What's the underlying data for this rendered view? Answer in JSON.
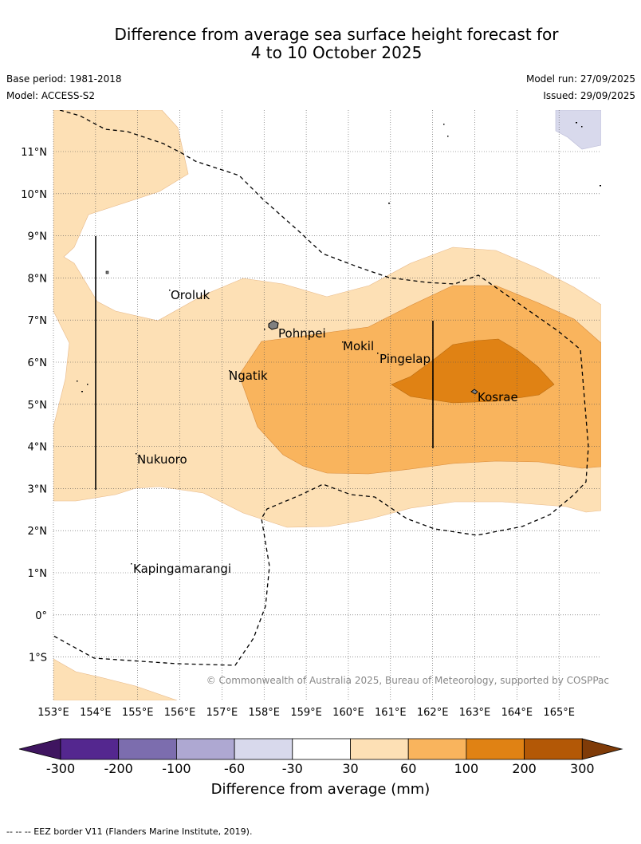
{
  "title": {
    "line1": "Difference from average sea surface height forecast for",
    "line2": "4 to 10 October 2025"
  },
  "meta": {
    "base_period": "Base period: 1981-2018",
    "model": "Model: ACCESS-S2",
    "model_run": "Model run: 27/09/2025",
    "issued": "Issued: 29/09/2025"
  },
  "axes": {
    "lat_labels": [
      "11°N",
      "10°N",
      "9°N",
      "8°N",
      "7°N",
      "6°N",
      "5°N",
      "4°N",
      "3°N",
      "2°N",
      "1°N",
      "0°",
      "1°S"
    ],
    "lon_labels": [
      "153°E",
      "154°E",
      "155°E",
      "156°E",
      "157°E",
      "158°E",
      "159°E",
      "160°E",
      "161°E",
      "162°E",
      "163°E",
      "164°E",
      "165°E"
    ]
  },
  "places": [
    {
      "name": "Oroluk"
    },
    {
      "name": "Pohnpei"
    },
    {
      "name": "Mokil"
    },
    {
      "name": "Pingelap"
    },
    {
      "name": "Ngatik"
    },
    {
      "name": "Kosrae"
    },
    {
      "name": "Nukuoro"
    },
    {
      "name": "Kapingamarangi"
    }
  ],
  "copyright": "© Commonwealth of Australia 2025, Bureau of Meteorology, supported by COSPPac",
  "colorbar": {
    "ticks": [
      "-300",
      "-200",
      "-100",
      "-60",
      "-30",
      "30",
      "60",
      "100",
      "200",
      "300"
    ],
    "label": "Difference from average (mm)",
    "colors": [
      "#3f1560",
      "#54278f",
      "#7c6dae",
      "#aea8d2",
      "#d8d9ec",
      "#ffffff",
      "#fde0b5",
      "#f9b45d",
      "#e08214",
      "#b35806",
      "#7f3b08"
    ]
  },
  "footnote": "--  --  -- EEZ border V11 (Flanders Marine Institute, 2019)."
}
